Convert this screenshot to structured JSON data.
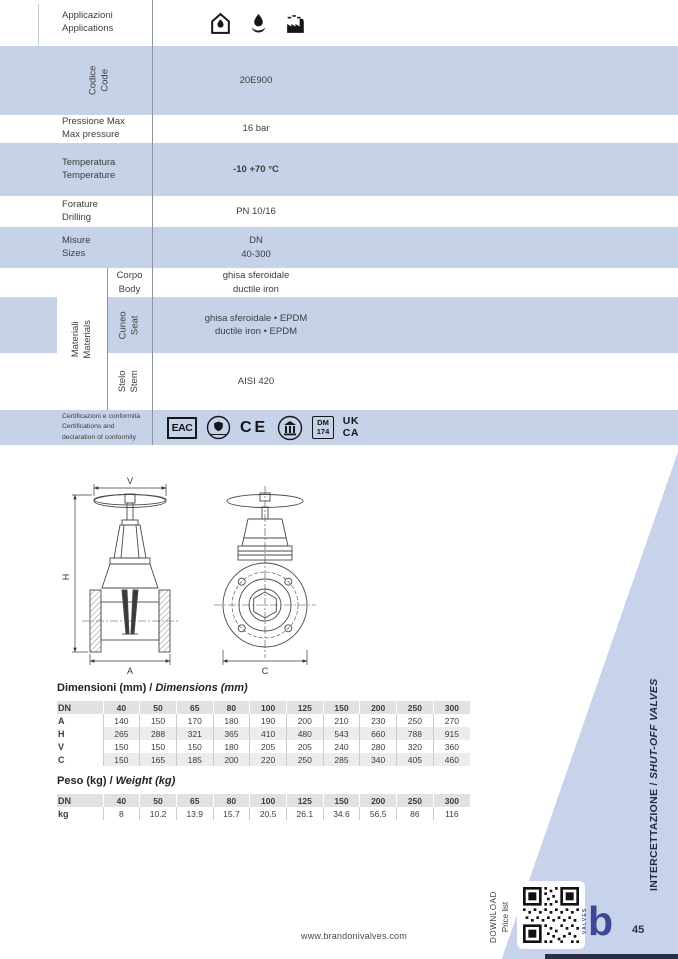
{
  "spec": {
    "applications": {
      "label_it": "Applicazioni",
      "label_en": "Applications"
    },
    "code": {
      "label_it": "Codice",
      "label_en": "Code",
      "value": "20E900"
    },
    "pressure": {
      "label_it": "Pressione Max",
      "label_en": "Max pressure",
      "value": "16 bar"
    },
    "temperature": {
      "label_it": "Temperatura",
      "label_en": "Temperature",
      "value": "-10 +70 °C"
    },
    "drilling": {
      "label_it": "Forature",
      "label_en": "Drilling",
      "value": "PN 10/16"
    },
    "sizes": {
      "label_it": "Misure",
      "label_en": "Sizes",
      "value_line1": "DN",
      "value_line2": "40-300"
    },
    "materials": {
      "label_it": "Materiali",
      "label_en": "Materials",
      "rows": [
        {
          "part_it": "Corpo",
          "part_en": "Body",
          "value_it": "ghisa sferoidale",
          "value_en": "ductile iron"
        },
        {
          "part_it": "Cuneo",
          "part_en": "Seat",
          "value_it": "ghisa sferoidale • EPDM",
          "value_en": "ductile iron • EPDM"
        },
        {
          "part_it": "Stelo",
          "part_en": "Stem",
          "value_it": "AISI 420",
          "value_en": ""
        }
      ]
    },
    "certifications": {
      "label_it": "Certificazioni e conformità",
      "label_en_1": "Certifications and",
      "label_en_2": "declaration of conformity",
      "eac": "EAC",
      "ce": "CE",
      "dm": "DM",
      "dm_num": "174",
      "ukca_1": "UK",
      "ukca_2": "CA"
    }
  },
  "drawing": {
    "dim_v": "V",
    "dim_h": "H",
    "dim_a": "A",
    "dim_c": "C"
  },
  "dimensions_table": {
    "title": {
      "regular": "Dimensioni (mm) /",
      "italic": "Dimensions (mm)"
    },
    "columns": [
      "DN",
      "40",
      "50",
      "65",
      "80",
      "100",
      "125",
      "150",
      "200",
      "250",
      "300"
    ],
    "rows": [
      {
        "label": "A",
        "values": [
          "140",
          "150",
          "170",
          "180",
          "190",
          "200",
          "210",
          "230",
          "250",
          "270"
        ]
      },
      {
        "label": "H",
        "values": [
          "265",
          "288",
          "321",
          "365",
          "410",
          "480",
          "543",
          "660",
          "788",
          "915"
        ]
      },
      {
        "label": "V",
        "values": [
          "150",
          "150",
          "150",
          "180",
          "205",
          "205",
          "240",
          "280",
          "320",
          "360"
        ]
      },
      {
        "label": "C",
        "values": [
          "150",
          "165",
          "185",
          "200",
          "220",
          "250",
          "285",
          "340",
          "405",
          "460"
        ]
      }
    ]
  },
  "weight_table": {
    "title": {
      "regular": "Peso (kg) /",
      "italic": "Weight (kg)"
    },
    "columns": [
      "DN",
      "40",
      "50",
      "65",
      "80",
      "100",
      "125",
      "150",
      "200",
      "250",
      "300"
    ],
    "rows": [
      {
        "label": "kg",
        "values": [
          "8",
          "10.2",
          "13.9",
          "15.7",
          "20.5",
          "26.1",
          "34.6",
          "56.5",
          "86",
          "116"
        ]
      }
    ]
  },
  "footer": {
    "website": "www.brandonivalves.com",
    "download_line1": "DOWNLOAD",
    "download_line2": "Price list",
    "logo_text": "VALVES",
    "logo_letter": "b",
    "side_label_regular": "INTERCETTAZIONE / ",
    "side_label_italic": "SHUT-OFF VALVES",
    "page_number": "45"
  },
  "colors": {
    "row_blue": "#c5d2e8",
    "band_blue": "#c6d3ea",
    "logo_indigo": "#3d4795",
    "navy": "#222b45"
  }
}
